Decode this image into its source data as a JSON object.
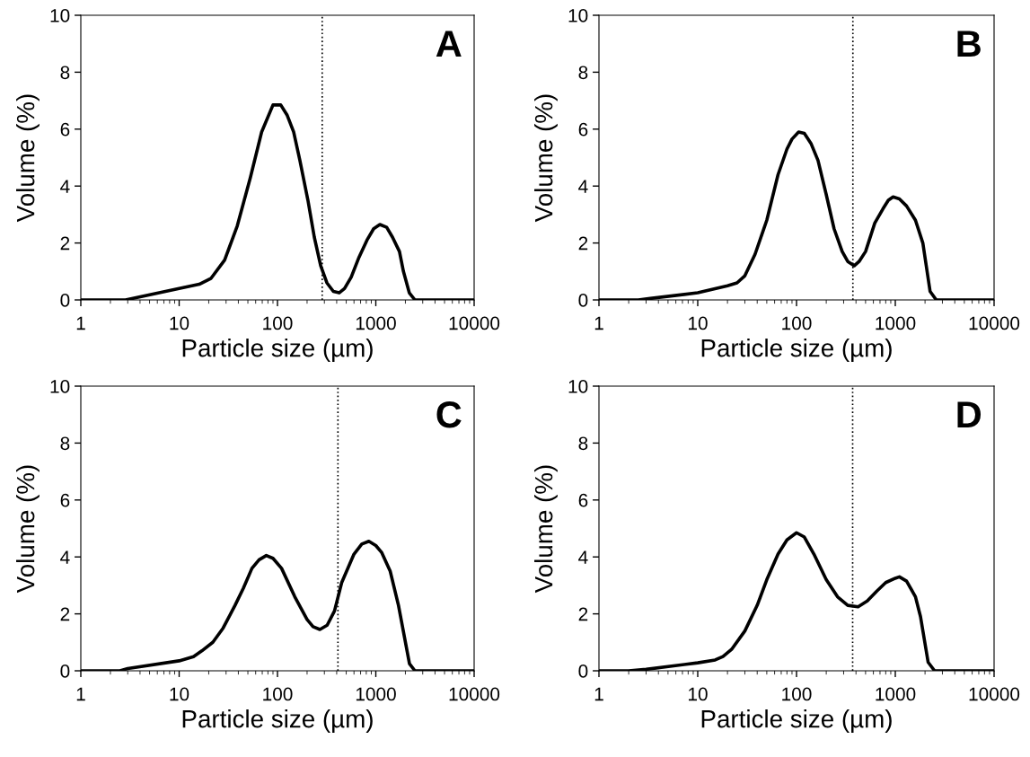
{
  "chart_data": [
    {
      "type": "line",
      "xlabel": "Particle size (µm)",
      "ylabel": "Volume (%)",
      "annotations": [
        "A"
      ],
      "log": "x",
      "grid": false,
      "marker": "none",
      "line_style": "solid",
      "xlim": [
        1,
        10000
      ],
      "xticks": [
        1,
        10,
        100,
        1000,
        10000
      ],
      "ylim": [
        0,
        10
      ],
      "yticks": [
        0,
        2,
        4,
        6,
        8,
        10
      ],
      "ref_lines": [
        {
          "axis": "x",
          "value": 285,
          "color": "#000000",
          "line_style": "dotted"
        }
      ],
      "series": [
        {
          "color": "#000000",
          "x": [
            1,
            2.85,
            10,
            16,
            21,
            29,
            39,
            53,
            69,
            90,
            108,
            125,
            146,
            169,
            204,
            237,
            275,
            318,
            370,
            424,
            480,
            562,
            675,
            813,
            950,
            1100,
            1290,
            1480,
            1740,
            1910,
            2190,
            2500,
            10000
          ],
          "values": [
            0,
            0,
            0.4,
            0.55,
            0.75,
            1.4,
            2.6,
            4.3,
            5.9,
            6.85,
            6.85,
            6.5,
            5.9,
            4.9,
            3.5,
            2.2,
            1.2,
            0.6,
            0.3,
            0.25,
            0.4,
            0.8,
            1.5,
            2.1,
            2.5,
            2.65,
            2.55,
            2.2,
            1.7,
            1.0,
            0.25,
            0,
            0
          ]
        }
      ]
    },
    {
      "type": "line",
      "xlabel": "Particle size (µm)",
      "ylabel": "Volume (%)",
      "annotations": [
        "B"
      ],
      "log": "x",
      "grid": false,
      "marker": "none",
      "line_style": "solid",
      "xlim": [
        1,
        10000
      ],
      "xticks": [
        1,
        10,
        100,
        1000,
        10000
      ],
      "ylim": [
        0,
        10
      ],
      "yticks": [
        0,
        2,
        4,
        6,
        8,
        10
      ],
      "ref_lines": [
        {
          "axis": "x",
          "value": 372,
          "color": "#000000",
          "line_style": "dotted"
        }
      ],
      "series": [
        {
          "color": "#000000",
          "x": [
            1,
            2.5,
            3.3,
            10,
            20,
            25,
            30,
            38,
            50,
            65,
            80,
            90,
            105,
            120,
            140,
            165,
            200,
            240,
            290,
            330,
            385,
            430,
            500,
            620,
            750,
            850,
            950,
            1100,
            1300,
            1600,
            1900,
            2250,
            2600,
            10000
          ],
          "values": [
            0,
            0,
            0.05,
            0.25,
            0.5,
            0.6,
            0.85,
            1.6,
            2.8,
            4.4,
            5.3,
            5.65,
            5.9,
            5.85,
            5.5,
            4.9,
            3.7,
            2.5,
            1.7,
            1.35,
            1.2,
            1.35,
            1.7,
            2.7,
            3.2,
            3.5,
            3.62,
            3.55,
            3.3,
            2.8,
            2.0,
            0.3,
            0,
            0
          ]
        }
      ]
    },
    {
      "type": "line",
      "xlabel": "Particle size (µm)",
      "ylabel": "Volume (%)",
      "annotations": [
        "C"
      ],
      "log": "x",
      "grid": false,
      "marker": "none",
      "line_style": "solid",
      "xlim": [
        1,
        10000
      ],
      "xticks": [
        1,
        10,
        100,
        1000,
        10000
      ],
      "ylim": [
        0,
        10
      ],
      "yticks": [
        0,
        2,
        4,
        6,
        8,
        10
      ],
      "ref_lines": [
        {
          "axis": "x",
          "value": 412,
          "color": "#000000",
          "line_style": "dotted"
        }
      ],
      "series": [
        {
          "color": "#000000",
          "x": [
            1,
            2.5,
            3,
            10,
            14,
            17,
            22,
            28,
            37,
            45,
            55,
            65,
            77,
            90,
            110,
            150,
            200,
            230,
            270,
            320,
            380,
            450,
            600,
            720,
            850,
            1000,
            1150,
            1400,
            1700,
            2200,
            2500,
            10000
          ],
          "values": [
            0,
            0,
            0.08,
            0.35,
            0.5,
            0.7,
            1.0,
            1.5,
            2.3,
            2.9,
            3.6,
            3.9,
            4.05,
            3.95,
            3.6,
            2.6,
            1.8,
            1.55,
            1.45,
            1.6,
            2.1,
            3.1,
            4.1,
            4.45,
            4.55,
            4.4,
            4.15,
            3.5,
            2.3,
            0.25,
            0,
            0
          ]
        }
      ]
    },
    {
      "type": "line",
      "xlabel": "Particle size (µm)",
      "ylabel": "Volume (%)",
      "annotations": [
        "D"
      ],
      "log": "x",
      "grid": false,
      "marker": "none",
      "line_style": "solid",
      "xlim": [
        1,
        10000
      ],
      "xticks": [
        1,
        10,
        100,
        1000,
        10000
      ],
      "ylim": [
        0,
        10
      ],
      "yticks": [
        0,
        2,
        4,
        6,
        8,
        10
      ],
      "ref_lines": [
        {
          "axis": "x",
          "value": 370,
          "color": "#000000",
          "line_style": "dotted"
        }
      ],
      "series": [
        {
          "color": "#000000",
          "x": [
            1,
            2,
            3,
            10,
            15,
            18,
            22,
            30,
            40,
            50,
            65,
            80,
            100,
            120,
            150,
            200,
            260,
            330,
            420,
            520,
            650,
            800,
            1000,
            1100,
            1300,
            1600,
            1800,
            2150,
            2500,
            10000
          ],
          "values": [
            0,
            0,
            0.05,
            0.28,
            0.38,
            0.5,
            0.75,
            1.4,
            2.3,
            3.2,
            4.1,
            4.6,
            4.85,
            4.7,
            4.1,
            3.2,
            2.6,
            2.3,
            2.25,
            2.45,
            2.8,
            3.1,
            3.25,
            3.3,
            3.15,
            2.6,
            1.9,
            0.3,
            0,
            0
          ]
        }
      ]
    }
  ]
}
